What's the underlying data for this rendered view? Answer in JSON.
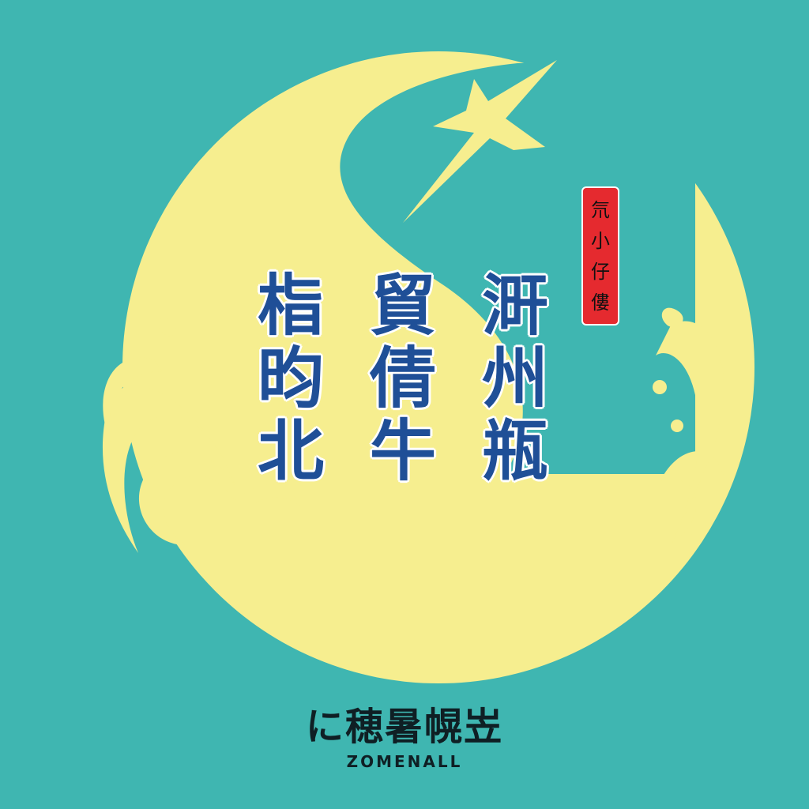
{
  "colors": {
    "background": "#3fb6b1",
    "moon": "#f6ee8f",
    "calligraphy": "#1f4f97",
    "seal": "#e52a2f",
    "footer_text": "#0f1f24"
  },
  "icons": {
    "moon": "crescent-moon-icon",
    "bird": "swallow-bird-icon",
    "waves": "wave-swirl-icon"
  },
  "calligraphy": {
    "left": [
      "栺",
      "昀",
      "北"
    ],
    "middle": [
      "貿",
      "倩",
      "牛"
    ],
    "right": [
      "涆",
      "州",
      "瓶"
    ]
  },
  "seal": {
    "chars": [
      "氘",
      "小",
      "仔",
      "僂"
    ]
  },
  "footer": {
    "chinese": "に穂暑幌岦",
    "english": "ZOMENALL"
  }
}
